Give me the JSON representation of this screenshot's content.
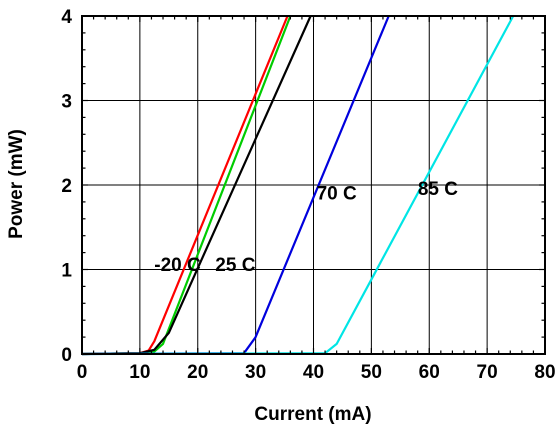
{
  "chart_data": {
    "type": "line",
    "xlabel": "Current (mA)",
    "ylabel": "Power (mW)",
    "xlim": [
      0,
      80
    ],
    "ylim": [
      0,
      4
    ],
    "xticks": [
      0,
      10,
      20,
      30,
      40,
      50,
      60,
      70,
      80
    ],
    "yticks": [
      0,
      1,
      2,
      3,
      4
    ],
    "grid": true,
    "series": [
      {
        "color": "#00cc00",
        "points": [
          [
            0,
            0
          ],
          [
            10,
            0.01
          ],
          [
            12.5,
            0.03
          ],
          [
            14,
            0.12
          ],
          [
            36,
            4.0
          ]
        ]
      },
      {
        "color": "#ff0000",
        "points": [
          [
            0,
            0
          ],
          [
            10,
            0.01
          ],
          [
            11.5,
            0.04
          ],
          [
            12.5,
            0.15
          ],
          [
            35.5,
            4.0
          ]
        ]
      },
      {
        "color": "#000000",
        "points": [
          [
            0,
            0
          ],
          [
            10,
            0.01
          ],
          [
            12.5,
            0.05
          ],
          [
            15,
            0.25
          ],
          [
            39.5,
            4.0
          ]
        ]
      },
      {
        "color": "#0000dd",
        "points": [
          [
            0,
            0
          ],
          [
            28,
            0.01
          ],
          [
            30,
            0.2
          ],
          [
            53,
            4.0
          ]
        ]
      },
      {
        "color": "#00e5e5",
        "points": [
          [
            0,
            0
          ],
          [
            42,
            0.01
          ],
          [
            44,
            0.12
          ],
          [
            74.5,
            4.0
          ]
        ]
      }
    ],
    "annotations": [
      {
        "text": "-20 C",
        "x": 16.5,
        "y": 0.98
      },
      {
        "text": "25 C",
        "x": 26.5,
        "y": 0.98
      },
      {
        "text": "70 C",
        "x": 44,
        "y": 1.83
      },
      {
        "text": "85 C",
        "x": 61.5,
        "y": 1.88
      }
    ]
  }
}
